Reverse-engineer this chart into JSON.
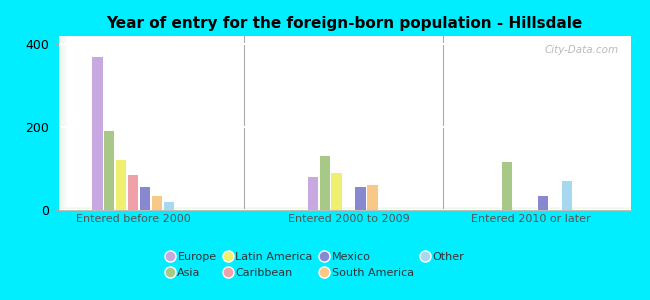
{
  "title": "Year of entry for the foreign-born population - Hillsdale",
  "groups": [
    "Entered before 2000",
    "Entered 2000 to 2009",
    "Entered 2010 or later"
  ],
  "categories": [
    "Europe",
    "Asia",
    "Latin America",
    "Caribbean",
    "Mexico",
    "South America",
    "Other"
  ],
  "colors": [
    "#c8a8e0",
    "#a8c888",
    "#f0f070",
    "#f0a0a8",
    "#8888d0",
    "#f8c888",
    "#a8d8f0"
  ],
  "values": {
    "Entered before 2000": [
      370,
      190,
      120,
      85,
      55,
      35,
      20
    ],
    "Entered 2000 to 2009": [
      80,
      130,
      90,
      0,
      55,
      60,
      0
    ],
    "Entered 2010 or later": [
      0,
      115,
      0,
      0,
      35,
      0,
      70
    ]
  },
  "ylim": [
    0,
    420
  ],
  "yticks": [
    0,
    200,
    400
  ],
  "bg_outer": "#00eeff",
  "watermark": "City-Data.com"
}
